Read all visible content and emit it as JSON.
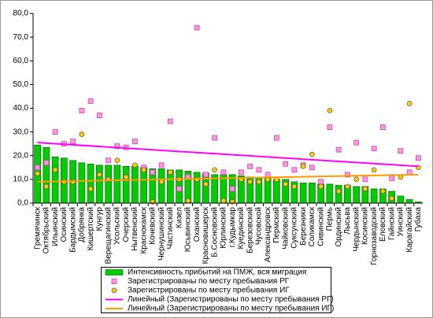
{
  "chart_data": {
    "type": "bar",
    "categories": [
      "Гремячинск",
      "Октябрьский",
      "Ильинский",
      "Осинский",
      "Бардымский",
      "Добрянка",
      "Кишертский",
      "Кунгур",
      "Верещагинский",
      "Усольский",
      "Очерский",
      "Нытвенский",
      "Краснокамск",
      "Кочевский",
      "Чернушинский",
      "Частинский",
      "Кизел",
      "Юсьвинский",
      "Оханский",
      "Красновишерск",
      "Б.Сосновский",
      "Юрлинский",
      "г.Кудымкар",
      "Куединский",
      "Березовский",
      "Чусовской",
      "Александровск",
      "Пермский",
      "Чайковский",
      "Суксунский",
      "Березники",
      "Соликамск",
      "Сивинский",
      "Пермь",
      "Ординский",
      "Лысьва",
      "Чердынский",
      "Косинский",
      "Горнозаводский",
      "Еловский",
      "Гайнский",
      "Уинский",
      "Карагайский",
      "Губаха"
    ],
    "series": [
      {
        "name": "Интенсивность прибытий на ПМЖ, вся миграция",
        "color": "#00cc00",
        "type": "bar",
        "values": [
          24.5,
          23.5,
          19.5,
          19,
          18,
          17,
          16.5,
          16,
          16,
          16,
          15.5,
          15.5,
          15,
          14.5,
          14.5,
          14,
          14,
          13.5,
          13,
          12.5,
          12,
          12,
          12,
          11.5,
          11,
          10.5,
          10.5,
          10,
          10,
          9,
          8.5,
          8.5,
          8,
          8,
          7.5,
          7.5,
          7,
          7,
          6,
          6,
          5,
          3,
          1.5,
          0.5
        ]
      },
      {
        "name": "Зарегистрированы по месту пребывания РГ",
        "color": "#ff99dd",
        "type": "square",
        "values": [
          15,
          17,
          30,
          25,
          26,
          39,
          43,
          37,
          18,
          24,
          23.5,
          26,
          15,
          13,
          16,
          34.5,
          6,
          11,
          74,
          12,
          27.5,
          13,
          6,
          13,
          15.5,
          14,
          12,
          27.5,
          16.5,
          14,
          16,
          15,
          9,
          32,
          22.5,
          12,
          25.5,
          10,
          23,
          32,
          10.5,
          22,
          13,
          19
        ]
      },
      {
        "name": "Зарегистрированы по месту пребывания ИГ",
        "color": "#ffcc00",
        "type": "circle",
        "values": [
          12.5,
          7,
          14,
          9,
          9,
          29,
          6,
          12,
          10,
          18,
          11,
          16,
          14,
          0.5,
          9,
          13,
          10,
          1,
          10,
          8,
          14,
          1,
          0.5,
          10,
          9,
          9,
          10,
          10,
          8,
          7,
          15.5,
          20.5,
          7,
          39,
          5,
          7,
          10,
          6,
          14,
          5,
          2,
          11,
          42,
          15
        ]
      }
    ],
    "trendlines": [
      {
        "name": "Линейный (Зарегистрированы по месту пребывания РГ)",
        "color": "#ff00ff",
        "values": [
          25.5,
          15.5
        ]
      },
      {
        "name": "Линейный (Зарегистрированы по месту пребывания ИГ)",
        "color": "#ff9900",
        "values": [
          9,
          12
        ]
      }
    ],
    "ylim": [
      0,
      80
    ],
    "yticks": [
      {
        "value": 0,
        "label": "0,0"
      },
      {
        "value": 10,
        "label": "10,0"
      },
      {
        "value": 20,
        "label": "20,0"
      },
      {
        "value": 30,
        "label": "30,0"
      },
      {
        "value": 40,
        "label": "40,0"
      },
      {
        "value": 50,
        "label": "50,0"
      },
      {
        "value": 60,
        "label": "60,0"
      },
      {
        "value": 70,
        "label": "70,0"
      },
      {
        "value": 80,
        "label": "80,0"
      }
    ],
    "legend": "bottom"
  }
}
